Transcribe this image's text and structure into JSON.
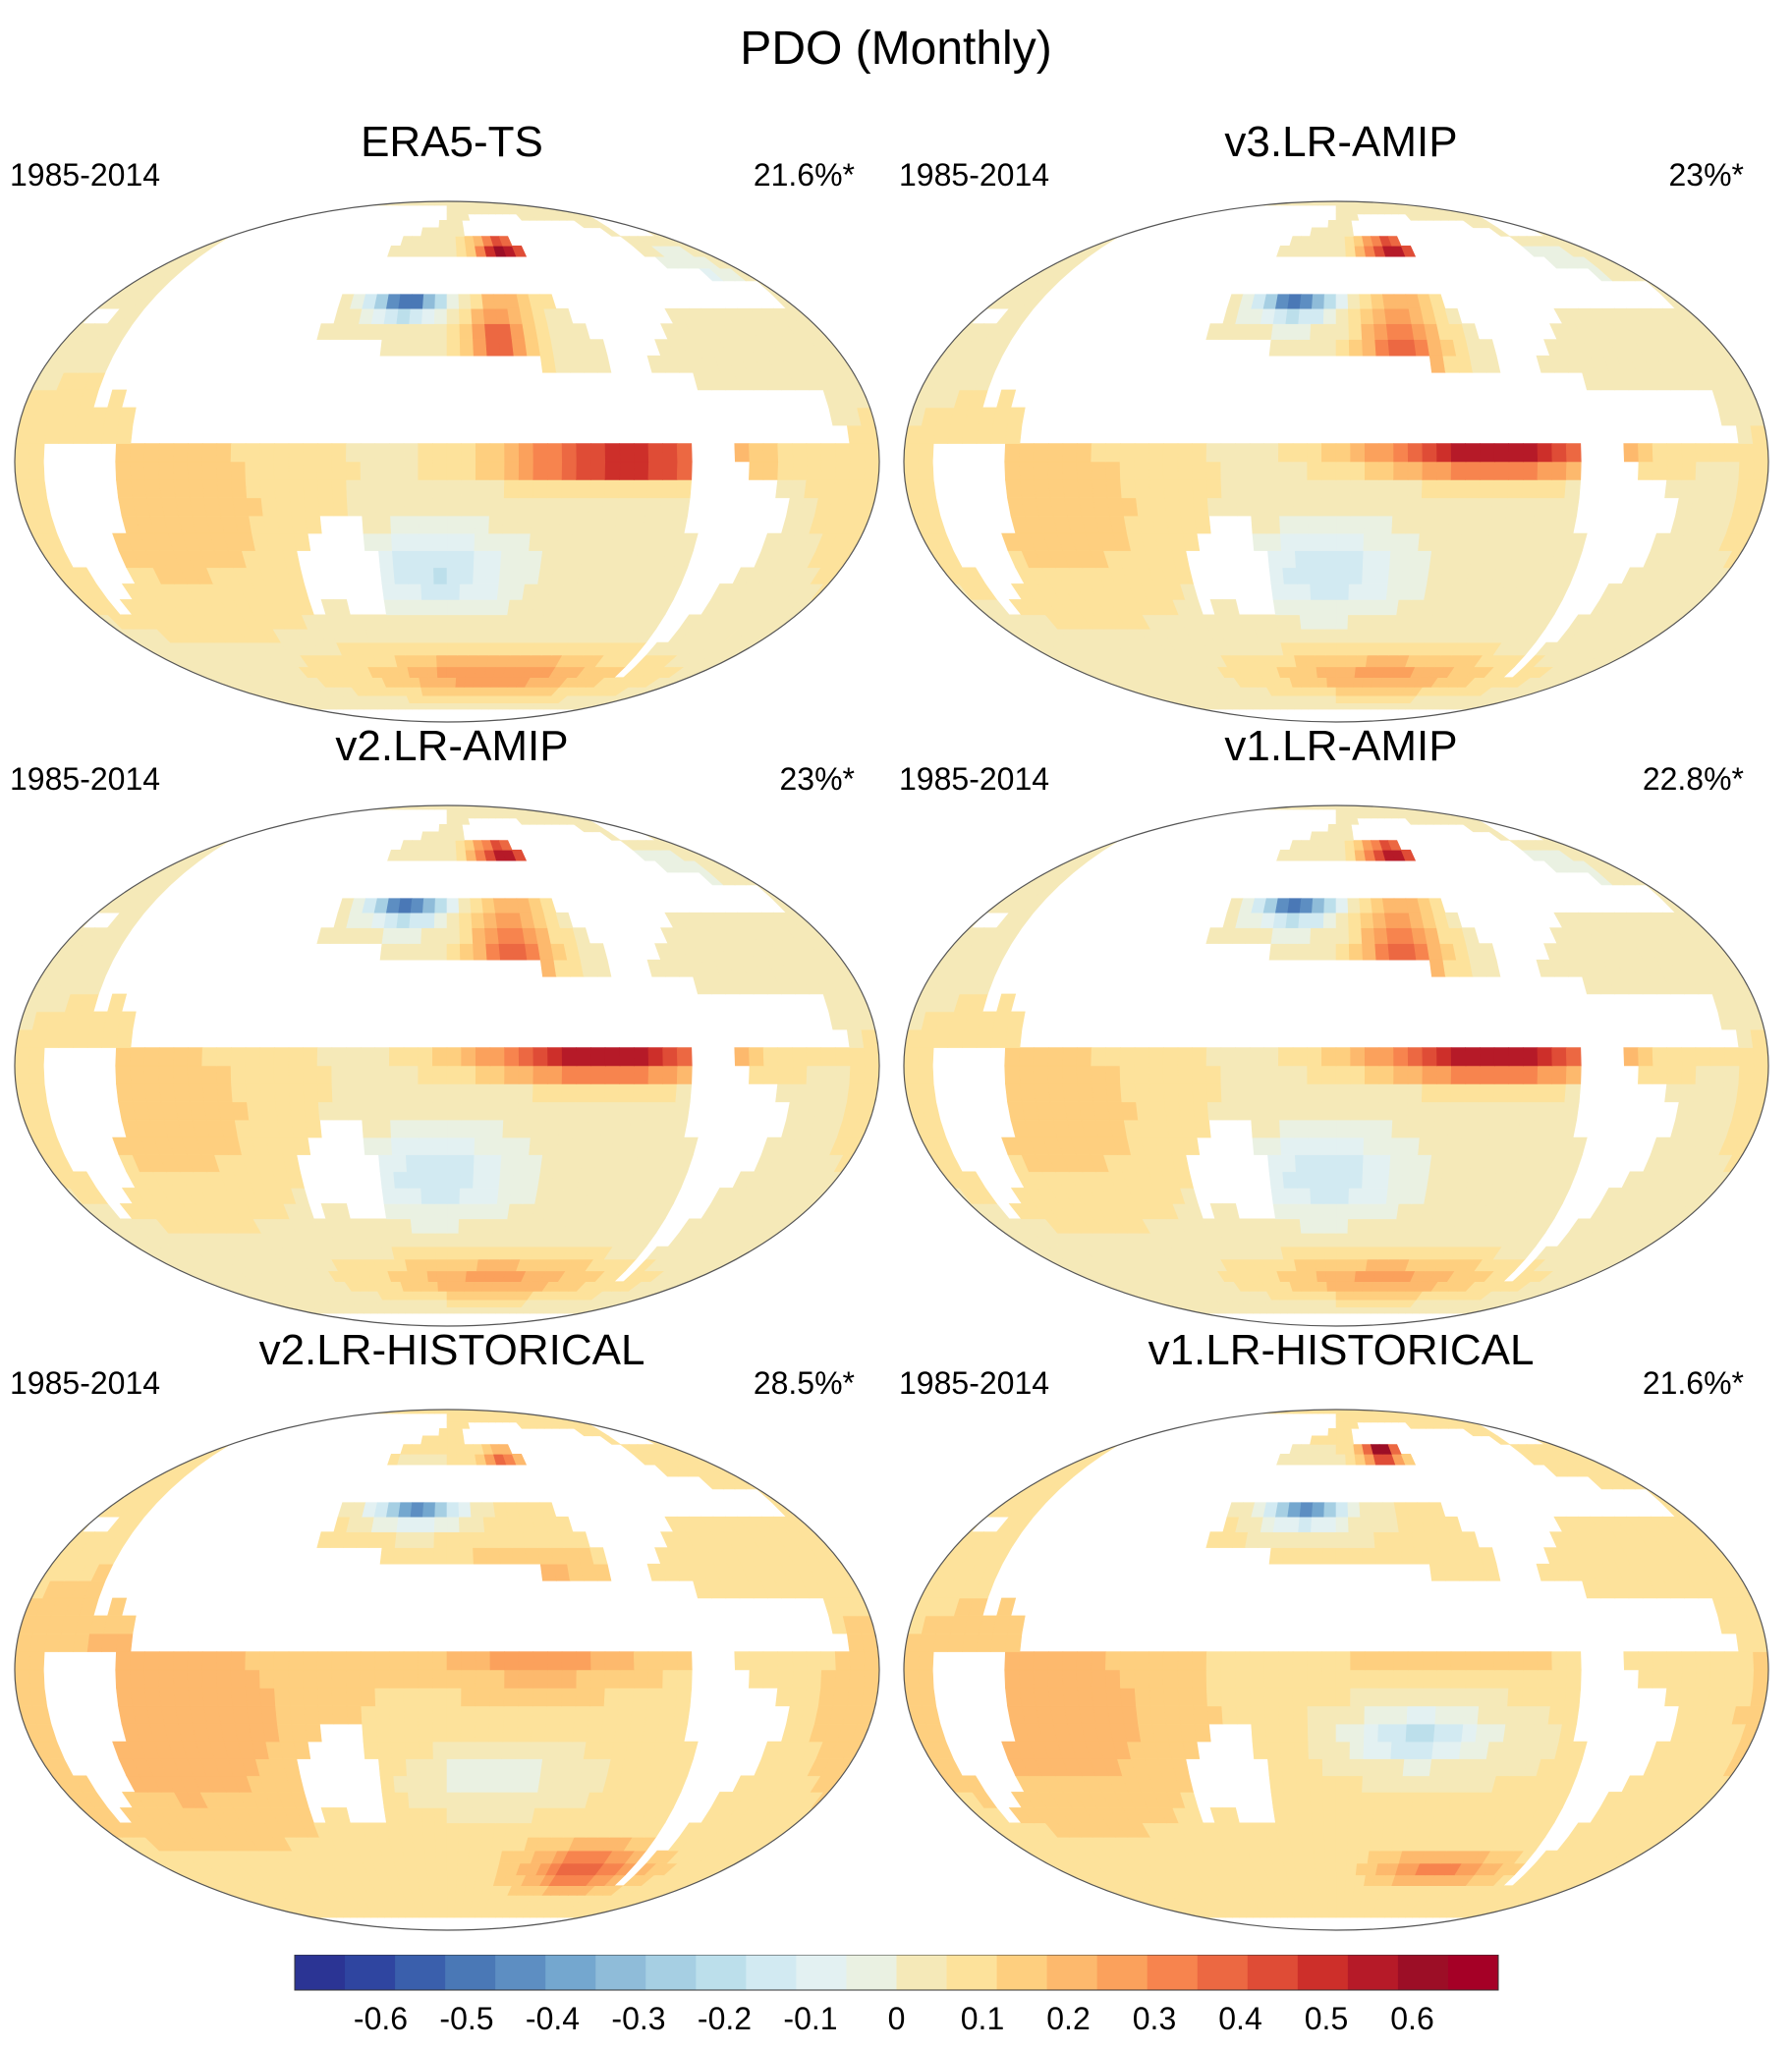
{
  "figure": {
    "title": "PDO (Monthly)"
  },
  "chart_data": {
    "type": "heatmap",
    "projection": "robinson",
    "panels": [
      {
        "title": "ERA5-TS",
        "period": "1985-2014",
        "variance_explained": "21.6%*",
        "pattern": "era5"
      },
      {
        "title": "v3.LR-AMIP",
        "period": "1985-2014",
        "variance_explained": "23%*",
        "pattern": "amip"
      },
      {
        "title": "v2.LR-AMIP",
        "period": "1985-2014",
        "variance_explained": "23%*",
        "pattern": "amip"
      },
      {
        "title": "v1.LR-AMIP",
        "period": "1985-2014",
        "variance_explained": "22.8%*",
        "pattern": "amip"
      },
      {
        "title": "v2.LR-HISTORICAL",
        "period": "1985-2014",
        "variance_explained": "28.5%*",
        "pattern": "hist2"
      },
      {
        "title": "v1.LR-HISTORICAL",
        "period": "1985-2014",
        "variance_explained": "21.6%*",
        "pattern": "hist1"
      }
    ],
    "colorbar": {
      "min": -0.7,
      "max": 0.7,
      "step": 0.05,
      "tick_labels": [
        "-0.6",
        "-0.5",
        "-0.4",
        "-0.3",
        "-0.2",
        "-0.1",
        "0",
        "0.1",
        "0.2",
        "0.3",
        "0.4",
        "0.5",
        "0.6"
      ],
      "tick_values": [
        -0.6,
        -0.5,
        -0.4,
        -0.3,
        -0.2,
        -0.1,
        0,
        0.1,
        0.2,
        0.3,
        0.4,
        0.5,
        0.6
      ],
      "colors": [
        "#2b3494",
        "#2f45a0",
        "#3a5fac",
        "#4a78b6",
        "#5d8ec2",
        "#74a7cf",
        "#8fbcd9",
        "#a6cfe3",
        "#bcdfeb",
        "#d2eaf2",
        "#e3f1f2",
        "#eaf1e2",
        "#f5e9b8",
        "#fde29b",
        "#fecf7f",
        "#fdb96d",
        "#fba15c",
        "#f7844e",
        "#ec6842",
        "#df4c36",
        "#cd2f2a",
        "#b61a28",
        "#9c0e26",
        "#a50026"
      ]
    }
  }
}
